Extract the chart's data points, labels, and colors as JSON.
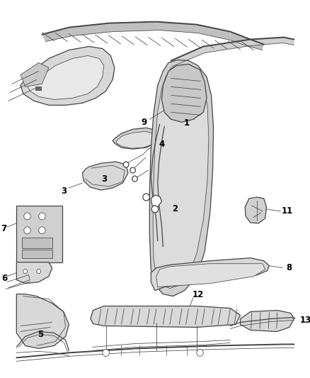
{
  "background_color": "#ffffff",
  "line_color": "#444444",
  "label_color": "#000000",
  "figsize": [
    4.38,
    5.33
  ],
  "dpi": 100,
  "lw_heavy": 1.4,
  "lw_med": 0.9,
  "lw_thin": 0.55,
  "gray_fill": "#c8c8c8",
  "gray_fill2": "#d8d8d8",
  "gray_fill3": "#e8e8e8"
}
